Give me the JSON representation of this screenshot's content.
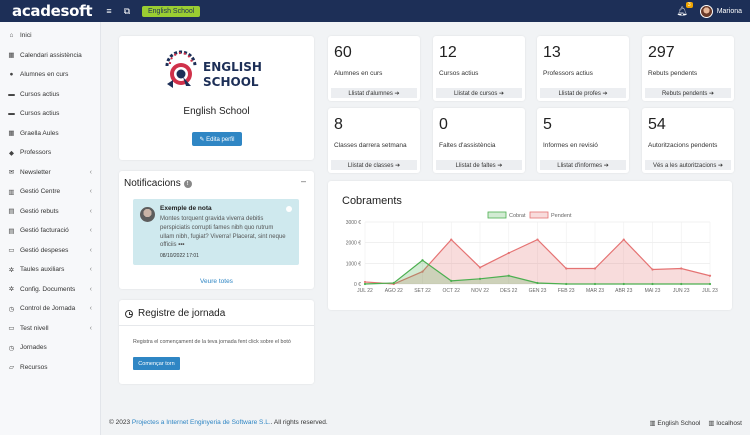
{
  "topbar": {
    "logo": "acadesoft",
    "school_badge": "English School",
    "notifications_count": "3",
    "user_name": "Mariona"
  },
  "sidebar": {
    "items": [
      {
        "label": "Inici",
        "icon": "home-icon",
        "glyph": "⌂",
        "chevron": ""
      },
      {
        "label": "Calendari assistència",
        "icon": "calendar-icon",
        "glyph": "▦",
        "chevron": ""
      },
      {
        "label": "Alumnes en curs",
        "icon": "user-icon",
        "glyph": "●",
        "chevron": ""
      },
      {
        "label": "Cursos actius",
        "icon": "cursos-icon",
        "glyph": "▬",
        "chevron": ""
      },
      {
        "label": "Cursos actius",
        "icon": "cursos-icon",
        "glyph": "▬",
        "chevron": ""
      },
      {
        "label": "Graella Aules",
        "icon": "grid-icon",
        "glyph": "▦",
        "chevron": ""
      },
      {
        "label": "Professors",
        "icon": "teacher-icon",
        "glyph": "◆",
        "chevron": ""
      },
      {
        "label": "Newsletter",
        "icon": "newsletter-icon",
        "glyph": "✉",
        "chevron": "‹"
      },
      {
        "label": "Gestió Centre",
        "icon": "building-icon",
        "glyph": "▥",
        "chevron": "‹"
      },
      {
        "label": "Gestió rebuts",
        "icon": "receipt-icon",
        "glyph": "▤",
        "chevron": "‹"
      },
      {
        "label": "Gestió facturació",
        "icon": "invoice-icon",
        "glyph": "▤",
        "chevron": "‹"
      },
      {
        "label": "Gestió despeses",
        "icon": "expenses-icon",
        "glyph": "▭",
        "chevron": "‹"
      },
      {
        "label": "Taules auxiliars",
        "icon": "gear-icon",
        "glyph": "✲",
        "chevron": "‹"
      },
      {
        "label": "Config. Documents",
        "icon": "gear-icon",
        "glyph": "✲",
        "chevron": "‹"
      },
      {
        "label": "Control de Jornada",
        "icon": "clock-icon",
        "glyph": "◷",
        "chevron": "‹"
      },
      {
        "label": "Test nivell",
        "icon": "test-icon",
        "glyph": "▭",
        "chevron": "‹"
      },
      {
        "label": "Jornades",
        "icon": "jornades-icon",
        "glyph": "◷",
        "chevron": ""
      },
      {
        "label": "Recursos",
        "icon": "folder-icon",
        "glyph": "▱",
        "chevron": ""
      }
    ]
  },
  "profile": {
    "logo_line1": "ENGLISH",
    "logo_line2": "SCHOOL",
    "name": "English School",
    "edit_button": "✎ Edita perfil"
  },
  "stats": [
    {
      "value": "60",
      "label": "Alumnes en curs",
      "link": "Llistat d'alumnes ➔"
    },
    {
      "value": "12",
      "label": "Cursos actius",
      "link": "Llistat de cursos ➔"
    },
    {
      "value": "13",
      "label": "Professors actius",
      "link": "Llistat de profes ➔"
    },
    {
      "value": "297",
      "label": "Rebuts pendents",
      "link": "Rebuts pendents ➔"
    },
    {
      "value": "8",
      "label": "Classes darrera setmana",
      "link": "Llistat de classes ➔"
    },
    {
      "value": "0",
      "label": "Faltes d'assistència",
      "link": "Llistat de faltes ➔"
    },
    {
      "value": "5",
      "label": "Informes en revisió",
      "link": "Llistat d'informes ➔"
    },
    {
      "value": "54",
      "label": "Autoritzacions pendents",
      "link": "Vés a les autoritzacions ➔"
    }
  ],
  "notifications": {
    "title": "Notificacions",
    "minimize": "–",
    "item": {
      "title": "Exemple de nota",
      "body": "Montes torquent gravida viverra debitis perspiciatis corrupti fames nibh quo rutrum ullam nibh, fugiat? Viverra! Placerat, sint neque officiis",
      "more": "•••",
      "date": "08/10/2022 17:01"
    },
    "see_all": "Veure totes"
  },
  "registre": {
    "title": "Registre de jornada",
    "text": "Registra el començament de la teva jornada fent click sobre el botó",
    "button": "Començar torn"
  },
  "chart_data": {
    "type": "area",
    "title": "Cobraments",
    "categories": [
      "JUL 22",
      "AGO 22",
      "SET 22",
      "OCT 22",
      "NOV 22",
      "DES 22",
      "GEN 23",
      "FEB 23",
      "MAR 23",
      "ABR 23",
      "MAI 23",
      "JUN 23",
      "JUL 23"
    ],
    "y_ticks": [
      "3000 €",
      "2000 €",
      "1000 €",
      "0 €"
    ],
    "ylim": [
      0,
      3000
    ],
    "legend_position": "top",
    "series": [
      {
        "name": "Cobrat",
        "color": "#4caf50",
        "values": [
          0,
          50,
          1150,
          150,
          250,
          400,
          50,
          0,
          0,
          0,
          0,
          0,
          0
        ]
      },
      {
        "name": "Pendent",
        "color": "#e57373",
        "values": [
          100,
          0,
          600,
          2150,
          800,
          1500,
          2150,
          750,
          750,
          2150,
          700,
          750,
          400
        ]
      }
    ]
  },
  "footer": {
    "prefix": "© 2023 ",
    "link": "Projectes a Internet Enginyeria de Software S.L.",
    "suffix": ". All rights reserved.",
    "school": "▥ English School",
    "host": "▥ localhost"
  }
}
